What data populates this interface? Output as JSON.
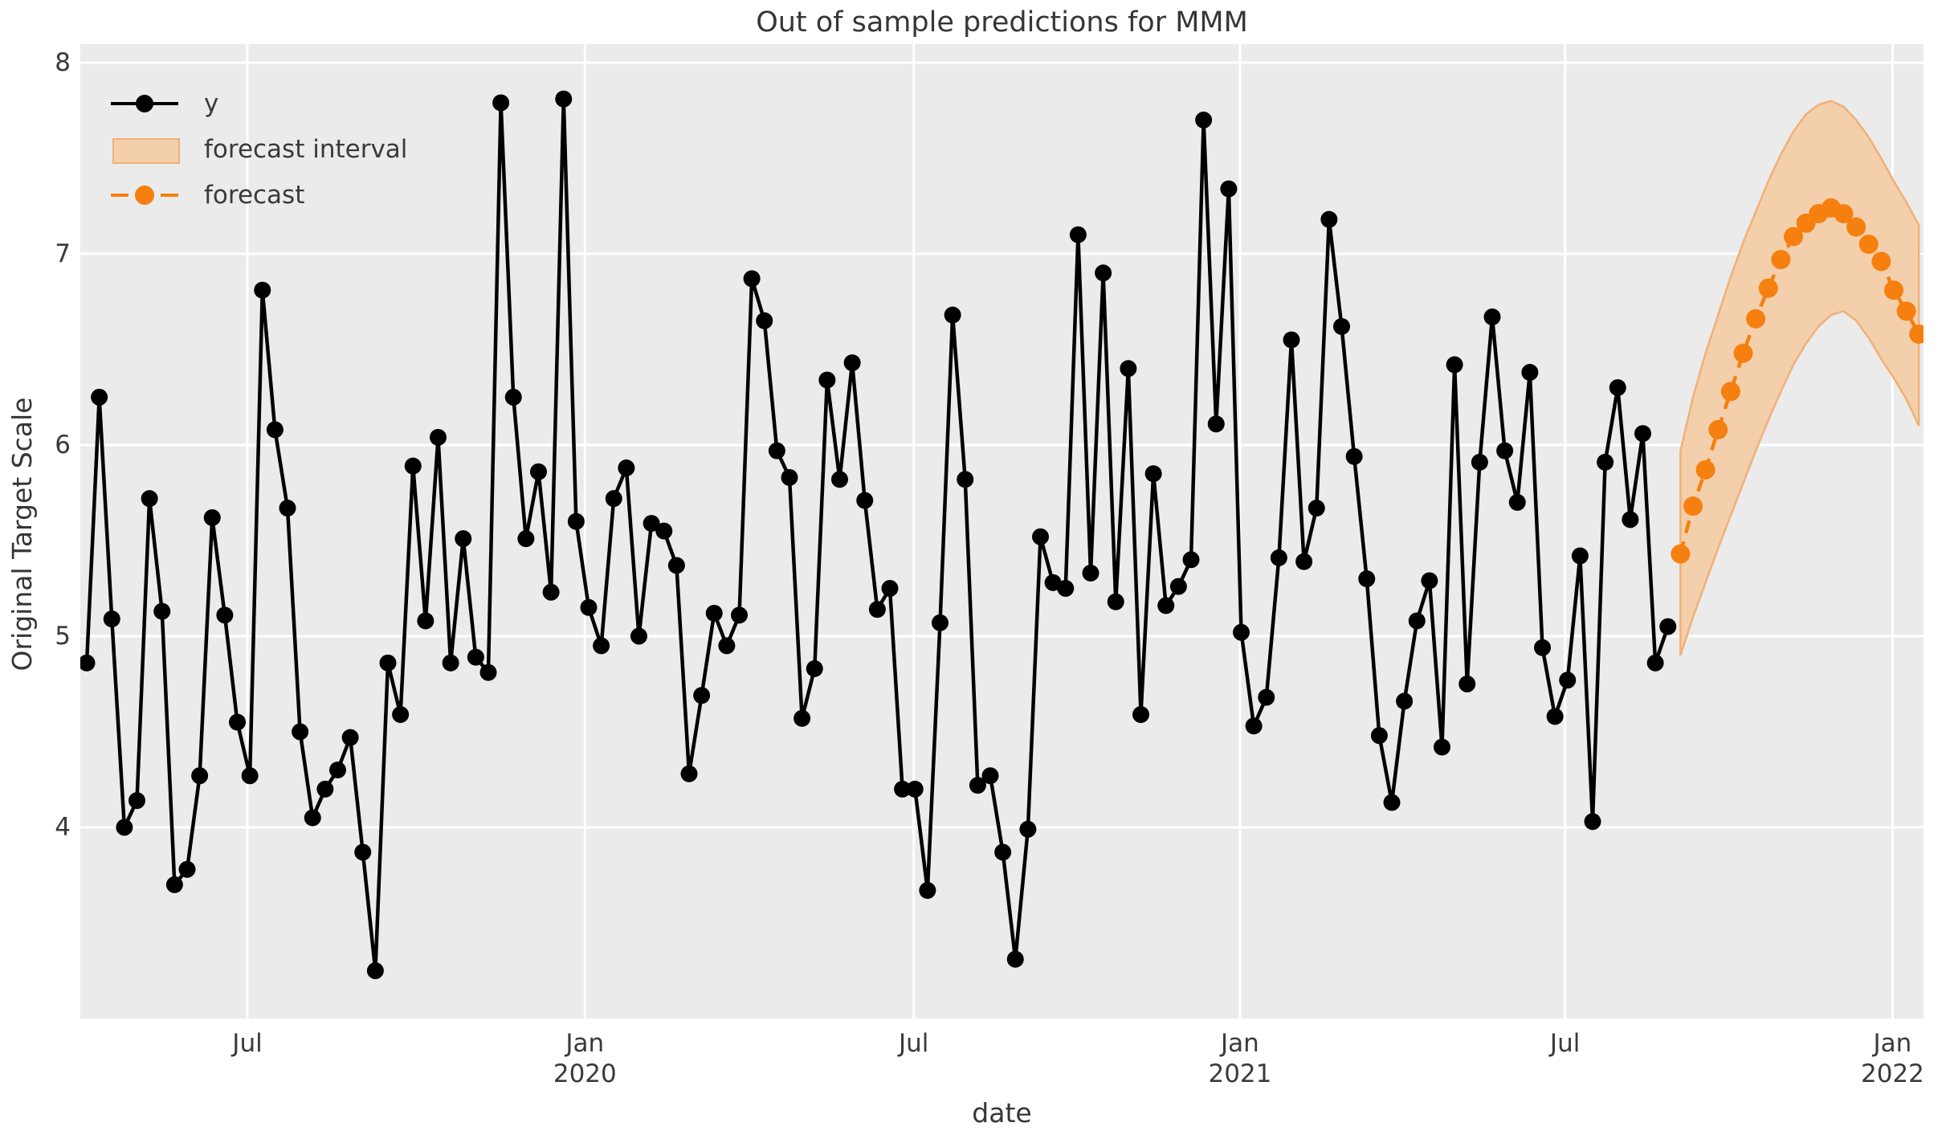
{
  "title": "Out of sample predictions for MMM",
  "axes": {
    "xlabel": "date",
    "ylabel": "Original Target Scale"
  },
  "legend": {
    "items": [
      {
        "label": "y",
        "sample": "solid-line-marker"
      },
      {
        "label": "forecast interval",
        "sample": "filled-patch"
      },
      {
        "label": "forecast",
        "sample": "dashed-line-marker"
      }
    ]
  },
  "colors": {
    "figure_bg": "#ffffff",
    "axes_bg": "#ebebeb",
    "grid": "#ffffff",
    "y_series": "#000000",
    "forecast": "#f5800f",
    "band_fill": "#f3cfab",
    "band_edge": "#f0b078",
    "text": "#363636"
  },
  "chart_data": {
    "type": "line",
    "title": "Out of sample predictions for MMM",
    "xlabel": "date",
    "ylabel": "Original Target Scale",
    "x_axis": "weekly time index, Apr 2019 - Jan 2022",
    "ylim": [
      3.0,
      8.1
    ],
    "xlim": [
      -0.5,
      146.6
    ],
    "yticks": [
      4,
      5,
      6,
      7,
      8
    ],
    "xticks": [
      {
        "index": 12.8,
        "label": "Jul",
        "year": ""
      },
      {
        "index": 39.7,
        "label": "Jan",
        "year": "2020"
      },
      {
        "index": 65.9,
        "label": "Jul",
        "year": ""
      },
      {
        "index": 91.9,
        "label": "Jan",
        "year": "2021"
      },
      {
        "index": 117.8,
        "label": "Jul",
        "year": ""
      },
      {
        "index": 143.9,
        "label": "Jan",
        "year": "2022"
      }
    ],
    "grid": "white gridlines on light gray background",
    "legend_position": "upper left",
    "series": [
      {
        "name": "y",
        "style": "solid line with circular markers",
        "color": "#000000",
        "start_index": 0,
        "values": [
          4.86,
          6.25,
          5.09,
          4.0,
          4.14,
          5.72,
          5.13,
          3.7,
          3.78,
          4.27,
          5.62,
          5.11,
          4.55,
          4.27,
          6.81,
          6.08,
          5.67,
          4.5,
          4.05,
          4.2,
          4.3,
          4.47,
          3.87,
          3.25,
          4.86,
          4.59,
          5.89,
          5.08,
          6.04,
          4.86,
          5.51,
          4.89,
          4.81,
          7.79,
          6.25,
          5.51,
          5.86,
          5.23,
          7.81,
          5.6,
          5.15,
          4.95,
          5.72,
          5.88,
          5.0,
          5.59,
          5.55,
          5.37,
          4.28,
          4.69,
          5.12,
          4.95,
          5.11,
          6.87,
          6.65,
          5.97,
          5.83,
          4.57,
          4.83,
          6.34,
          5.82,
          6.43,
          5.71,
          5.14,
          5.25,
          4.2,
          4.2,
          3.67,
          5.07,
          6.68,
          5.82,
          4.22,
          4.27,
          3.87,
          3.31,
          3.99,
          5.52,
          5.28,
          5.25,
          7.1,
          5.33,
          6.9,
          5.18,
          6.4,
          4.59,
          5.85,
          5.16,
          5.26,
          5.4,
          7.7,
          6.11,
          7.34,
          5.02,
          4.53,
          4.68,
          5.41,
          6.55,
          5.39,
          5.67,
          7.18,
          6.62,
          5.94,
          5.3,
          4.48,
          4.13,
          4.66,
          5.08,
          5.29,
          4.42,
          6.42,
          4.75,
          5.91,
          6.67,
          5.97,
          5.7,
          6.38,
          4.94,
          4.58,
          4.77,
          5.42,
          4.03,
          5.91,
          6.3,
          5.61,
          6.06,
          4.86,
          5.05
        ]
      },
      {
        "name": "forecast",
        "style": "dashed line with circular markers",
        "color": "#f5800f",
        "start_index": 127,
        "values": [
          5.43,
          5.68,
          5.87,
          6.08,
          6.28,
          6.48,
          6.66,
          6.82,
          6.97,
          7.09,
          7.16,
          7.21,
          7.24,
          7.21,
          7.14,
          7.05,
          6.96,
          6.81,
          6.7,
          6.58
        ]
      },
      {
        "name": "forecast interval",
        "style": "shaded band",
        "color": "#f3cfab",
        "start_index": 127,
        "upper": [
          5.97,
          6.25,
          6.48,
          6.68,
          6.88,
          7.06,
          7.22,
          7.38,
          7.52,
          7.64,
          7.73,
          7.78,
          7.8,
          7.77,
          7.7,
          7.61,
          7.5,
          7.38,
          7.27,
          7.15
        ],
        "lower": [
          4.9,
          5.1,
          5.28,
          5.46,
          5.63,
          5.8,
          5.97,
          6.13,
          6.28,
          6.42,
          6.53,
          6.62,
          6.68,
          6.7,
          6.65,
          6.56,
          6.45,
          6.35,
          6.24,
          6.1
        ]
      }
    ]
  }
}
